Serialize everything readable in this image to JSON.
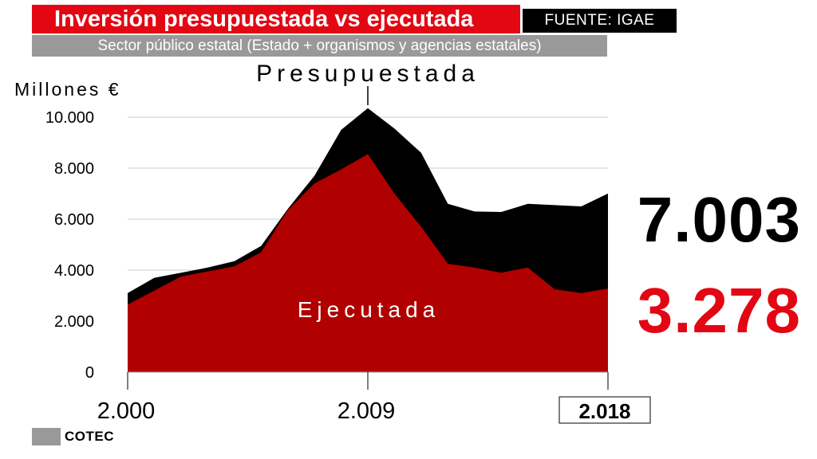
{
  "header": {
    "title": "Inversión presupuestada vs ejecutada",
    "source": "FUENTE: IGAE",
    "subtitle": "Sector público estatal (Estado + organismos y agencias estatales)"
  },
  "logo": {
    "text": "COTEC"
  },
  "highlights": {
    "presupuestada_2018": "7.003",
    "ejecutada_2018": "3.278"
  },
  "colors": {
    "brand_red": "#e30613",
    "ejecutada_fill": "#b00000",
    "presupuestada_fill": "#000000",
    "subtitle_gray": "#999999"
  },
  "chart_data": {
    "type": "area",
    "unit_label": "Millones €",
    "ylim": [
      0,
      10000
    ],
    "yticks": [
      0,
      2000,
      4000,
      6000,
      8000,
      10000
    ],
    "ytick_labels": [
      "0",
      "2.000",
      "4.000",
      "6.000",
      "8.000",
      "10.000"
    ],
    "xlim": [
      2000,
      2018
    ],
    "xtick_labels": [
      {
        "x": 2000,
        "label": "2.000",
        "boxed": false
      },
      {
        "x": 2009,
        "label": "2.009",
        "boxed": false
      },
      {
        "x": 2018,
        "label": "2.018",
        "boxed": true
      }
    ],
    "grid": true,
    "annotation": {
      "text": "Presupuestada",
      "x": 2009
    },
    "series": [
      {
        "name": "Presupuestada",
        "x": [
          2000,
          2001,
          2002,
          2003,
          2004,
          2005,
          2006,
          2007,
          2008,
          2009,
          2010,
          2011,
          2012,
          2013,
          2014,
          2015,
          2016,
          2017,
          2018
        ],
        "values": [
          3100,
          3700,
          3900,
          4100,
          4350,
          4950,
          6400,
          7700,
          9500,
          10350,
          9550,
          8600,
          6600,
          6300,
          6280,
          6600,
          6550,
          6500,
          7003
        ]
      },
      {
        "name": "Ejecutada",
        "x": [
          2000,
          2001,
          2002,
          2003,
          2004,
          2005,
          2006,
          2007,
          2008,
          2009,
          2010,
          2011,
          2012,
          2013,
          2014,
          2015,
          2016,
          2017,
          2018
        ],
        "values": [
          2650,
          3200,
          3750,
          3950,
          4150,
          4700,
          6350,
          7400,
          7950,
          8550,
          7000,
          5700,
          4250,
          4100,
          3900,
          4100,
          3250,
          3100,
          3278
        ]
      }
    ]
  }
}
